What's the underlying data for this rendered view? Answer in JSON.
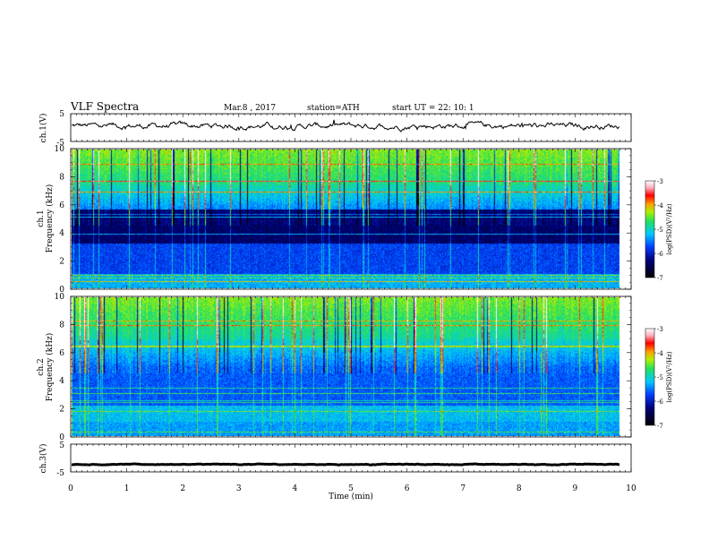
{
  "header": {
    "title": "VLF  Spectra",
    "date": "Mar.8  , 2017",
    "station": "station=ATH",
    "start": "start  UT  =   22: 10: 1"
  },
  "chart_data": [
    {
      "type": "line",
      "panel": "ch1-waveform",
      "ylabel": "ch.1(V)",
      "yticks": [
        "5",
        "-5"
      ],
      "ylim": [
        -5,
        5
      ],
      "approx_value": 0.6
    },
    {
      "type": "heatmap",
      "panel": "ch1-spectrogram",
      "ylabel_top": "ch.1",
      "ylabel": "Frequency  (kHz)",
      "yticks": [
        "0",
        "2",
        "4",
        "6",
        "8",
        "10"
      ],
      "ylim": [
        0,
        10
      ],
      "colorbar": {
        "label": "log(PSD)(V²/Hz)",
        "ticks": [
          "-3",
          "-4",
          "-5",
          "-6",
          "-7"
        ],
        "range": [
          -7,
          -3
        ]
      }
    },
    {
      "type": "heatmap",
      "panel": "ch2-spectrogram",
      "ylabel_top": "ch.2",
      "ylabel": "Frequency  (kHz)",
      "yticks": [
        "0",
        "2",
        "4",
        "6",
        "8",
        "10"
      ],
      "ylim": [
        0,
        10
      ],
      "colorbar": {
        "label": "log(PSD)(V²/Hz)",
        "ticks": [
          "-3",
          "-4",
          "-5",
          "-6",
          "-7"
        ],
        "range": [
          -7,
          -3
        ]
      }
    },
    {
      "type": "line",
      "panel": "ch3-waveform",
      "ylabel": "ch.3(V)",
      "yticks": [
        "5",
        "-5"
      ],
      "ylim": [
        -5,
        5
      ],
      "approx_value": -2.3
    }
  ],
  "xaxis": {
    "label": "Time  (min)",
    "ticks": [
      "0",
      "1",
      "2",
      "3",
      "4",
      "5",
      "6",
      "7",
      "8",
      "9",
      "10"
    ],
    "xlim": [
      0,
      10
    ],
    "data_end": 9.8
  }
}
